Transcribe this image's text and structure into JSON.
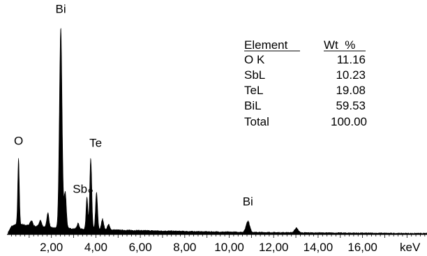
{
  "chart_data": {
    "type": "area",
    "title": "",
    "xlabel": "",
    "x_unit": "keV",
    "ylabel": "",
    "xlim": [
      0,
      18.9
    ],
    "x_ticks": [
      {
        "value": 2,
        "label": "2,00"
      },
      {
        "value": 4,
        "label": "4,00"
      },
      {
        "value": 6,
        "label": "6,00"
      },
      {
        "value": 8,
        "label": "8,00"
      },
      {
        "value": 10,
        "label": "10,00"
      },
      {
        "value": 12,
        "label": "12,00"
      },
      {
        "value": 14,
        "label": "14,00"
      },
      {
        "value": 16,
        "label": "16,00"
      }
    ],
    "grid": false,
    "spectrum": {
      "background": [
        [
          0.05,
          3
        ],
        [
          0.2,
          12
        ],
        [
          0.5,
          16
        ],
        [
          1.0,
          13
        ],
        [
          1.5,
          11
        ],
        [
          2.0,
          10
        ],
        [
          3.0,
          8.5
        ],
        [
          4.0,
          7.5
        ],
        [
          5.0,
          6.5
        ],
        [
          6.0,
          5.8
        ],
        [
          7.0,
          5.2
        ],
        [
          8.0,
          4.6
        ],
        [
          9.0,
          4.0
        ],
        [
          10.0,
          3.6
        ],
        [
          11.0,
          3.2
        ],
        [
          12.0,
          2.9
        ],
        [
          13.0,
          2.6
        ],
        [
          14.0,
          2.4
        ],
        [
          15.0,
          2.2
        ],
        [
          16.0,
          2.0
        ],
        [
          17.0,
          1.8
        ],
        [
          18.0,
          1.6
        ],
        [
          18.9,
          1.5
        ]
      ],
      "peaks": [
        {
          "element": "O",
          "x": 0.52,
          "height": 100,
          "width": 0.035
        },
        {
          "element": "",
          "x": 1.1,
          "height": 8,
          "width": 0.06
        },
        {
          "element": "",
          "x": 1.5,
          "height": 10,
          "width": 0.06
        },
        {
          "element": "",
          "x": 1.84,
          "height": 22,
          "width": 0.05
        },
        {
          "element": "Bi",
          "x": 2.42,
          "height": 300,
          "width": 0.06
        },
        {
          "element": "",
          "x": 2.62,
          "height": 55,
          "width": 0.05
        },
        {
          "element": "",
          "x": 3.2,
          "height": 8,
          "width": 0.05
        },
        {
          "element": "Sb",
          "x": 3.6,
          "height": 48,
          "width": 0.04
        },
        {
          "element": "Te",
          "x": 3.77,
          "height": 105,
          "width": 0.045
        },
        {
          "element": "",
          "x": 4.03,
          "height": 55,
          "width": 0.045
        },
        {
          "element": "",
          "x": 4.3,
          "height": 16,
          "width": 0.05
        },
        {
          "element": "",
          "x": 4.57,
          "height": 8,
          "width": 0.05
        },
        {
          "element": "Bi",
          "x": 10.84,
          "height": 17,
          "width": 0.08
        },
        {
          "element": "",
          "x": 13.02,
          "height": 7,
          "width": 0.08
        }
      ],
      "y_max": 310
    },
    "peak_labels": [
      {
        "text": "Bi",
        "x": 2.42
      },
      {
        "text": "O",
        "x": 0.52
      },
      {
        "text": "Te",
        "x": 3.77
      },
      {
        "text": "Sb",
        "x": 3.6
      },
      {
        "text": "Bi",
        "x": 10.84
      }
    ],
    "composition_table": {
      "headers": [
        "Element",
        "Wt  %"
      ],
      "rows": [
        {
          "element": "O K",
          "wt": "11.16"
        },
        {
          "element": "SbL",
          "wt": "10.23"
        },
        {
          "element": "TeL",
          "wt": "19.08"
        },
        {
          "element": "BiL",
          "wt": "59.53"
        },
        {
          "element": "Total",
          "wt": "100.00"
        }
      ]
    },
    "legend": "none"
  }
}
